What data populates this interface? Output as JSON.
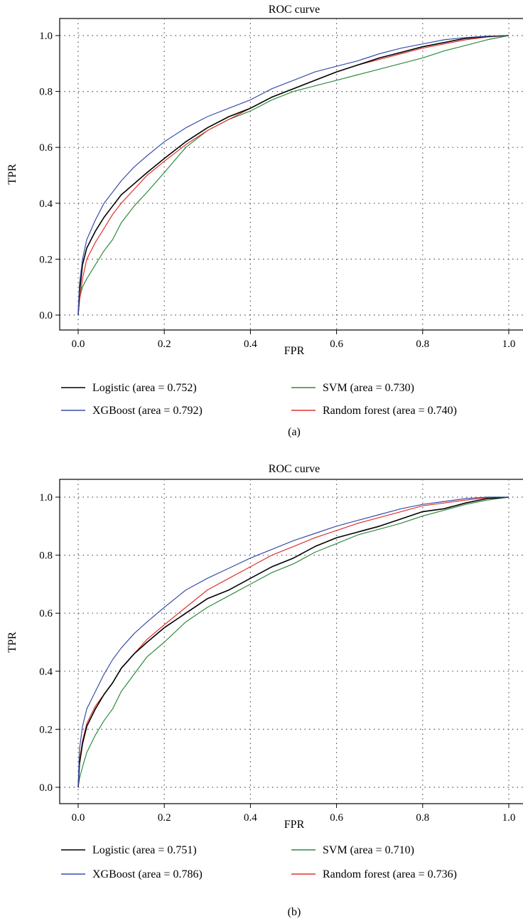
{
  "figure": {
    "panel_labels": [
      "(a)",
      "(b)"
    ]
  },
  "colors": {
    "logistic": "#000000",
    "xgboost": "#3a4fa8",
    "svm": "#2e8b3e",
    "random_forest": "#e0322d",
    "grid": "#555555"
  },
  "chart_data": [
    {
      "type": "line",
      "title": "ROC curve",
      "xlabel": "FPR",
      "ylabel": "TPR",
      "xlim": [
        0,
        1
      ],
      "ylim": [
        0,
        1
      ],
      "xticks": [
        "0.0",
        "0.2",
        "0.4",
        "0.6",
        "0.8",
        "1.0"
      ],
      "yticks": [
        "0.0",
        "0.2",
        "0.4",
        "0.6",
        "0.8",
        "1.0"
      ],
      "grid": true,
      "legend": "below",
      "series": [
        {
          "name": "Logistic (area = 0.752)",
          "color": "#000000",
          "key": "logistic",
          "x": [
            0,
            0.003,
            0.01,
            0.02,
            0.04,
            0.06,
            0.08,
            0.1,
            0.13,
            0.16,
            0.2,
            0.25,
            0.3,
            0.35,
            0.4,
            0.45,
            0.5,
            0.55,
            0.6,
            0.65,
            0.7,
            0.75,
            0.8,
            0.85,
            0.9,
            0.95,
            1.0
          ],
          "y": [
            0,
            0.08,
            0.18,
            0.24,
            0.3,
            0.35,
            0.39,
            0.43,
            0.47,
            0.51,
            0.56,
            0.62,
            0.67,
            0.71,
            0.74,
            0.78,
            0.81,
            0.84,
            0.87,
            0.895,
            0.92,
            0.94,
            0.96,
            0.975,
            0.99,
            0.997,
            1.0
          ]
        },
        {
          "name": "XGBoost (area = 0.792)",
          "color": "#3a4fa8",
          "key": "xgboost",
          "x": [
            0,
            0.003,
            0.01,
            0.02,
            0.04,
            0.06,
            0.08,
            0.1,
            0.13,
            0.16,
            0.2,
            0.25,
            0.3,
            0.35,
            0.4,
            0.45,
            0.5,
            0.55,
            0.6,
            0.65,
            0.7,
            0.75,
            0.8,
            0.85,
            0.9,
            0.95,
            1.0
          ],
          "y": [
            0,
            0.11,
            0.2,
            0.27,
            0.34,
            0.4,
            0.44,
            0.48,
            0.53,
            0.57,
            0.62,
            0.67,
            0.71,
            0.74,
            0.77,
            0.81,
            0.84,
            0.87,
            0.89,
            0.91,
            0.935,
            0.955,
            0.97,
            0.985,
            0.993,
            0.998,
            1.0
          ]
        },
        {
          "name": "SVM (area = 0.730)",
          "color": "#2e8b3e",
          "key": "svm",
          "x": [
            0,
            0.003,
            0.01,
            0.02,
            0.04,
            0.06,
            0.08,
            0.1,
            0.13,
            0.16,
            0.2,
            0.25,
            0.3,
            0.35,
            0.4,
            0.45,
            0.5,
            0.55,
            0.6,
            0.65,
            0.7,
            0.75,
            0.8,
            0.85,
            0.9,
            0.95,
            1.0
          ],
          "y": [
            0,
            0.06,
            0.1,
            0.13,
            0.18,
            0.23,
            0.27,
            0.33,
            0.39,
            0.44,
            0.51,
            0.6,
            0.66,
            0.7,
            0.73,
            0.77,
            0.8,
            0.82,
            0.84,
            0.86,
            0.88,
            0.9,
            0.92,
            0.945,
            0.965,
            0.985,
            1.0
          ]
        },
        {
          "name": "Random forest (area = 0.740)",
          "color": "#e0322d",
          "key": "random_forest",
          "x": [
            0,
            0.003,
            0.01,
            0.02,
            0.04,
            0.06,
            0.08,
            0.1,
            0.13,
            0.16,
            0.2,
            0.25,
            0.3,
            0.35,
            0.4,
            0.45,
            0.5,
            0.55,
            0.6,
            0.65,
            0.7,
            0.75,
            0.8,
            0.85,
            0.9,
            0.95,
            1.0
          ],
          "y": [
            0,
            0.05,
            0.13,
            0.2,
            0.26,
            0.31,
            0.36,
            0.4,
            0.45,
            0.5,
            0.55,
            0.61,
            0.66,
            0.7,
            0.74,
            0.78,
            0.81,
            0.84,
            0.87,
            0.895,
            0.915,
            0.935,
            0.955,
            0.97,
            0.985,
            0.995,
            1.0
          ]
        }
      ]
    },
    {
      "type": "line",
      "title": "ROC curve",
      "xlabel": "FPR",
      "ylabel": "TPR",
      "xlim": [
        0,
        1
      ],
      "ylim": [
        0,
        1
      ],
      "xticks": [
        "0.0",
        "0.2",
        "0.4",
        "0.6",
        "0.8",
        "1.0"
      ],
      "yticks": [
        "0.0",
        "0.2",
        "0.4",
        "0.6",
        "0.8",
        "1.0"
      ],
      "grid": true,
      "legend": "below",
      "series": [
        {
          "name": "Logistic (area = 0.751)",
          "color": "#000000",
          "key": "logistic",
          "x": [
            0,
            0.003,
            0.01,
            0.02,
            0.04,
            0.06,
            0.08,
            0.1,
            0.13,
            0.16,
            0.2,
            0.25,
            0.3,
            0.35,
            0.4,
            0.45,
            0.5,
            0.55,
            0.6,
            0.65,
            0.7,
            0.75,
            0.8,
            0.85,
            0.9,
            0.95,
            1.0
          ],
          "y": [
            0,
            0.08,
            0.15,
            0.21,
            0.27,
            0.32,
            0.36,
            0.41,
            0.46,
            0.5,
            0.55,
            0.6,
            0.65,
            0.68,
            0.72,
            0.76,
            0.79,
            0.83,
            0.86,
            0.88,
            0.9,
            0.925,
            0.95,
            0.96,
            0.98,
            0.995,
            1.0
          ]
        },
        {
          "name": "XGBoost (area = 0.786)",
          "color": "#3a4fa8",
          "key": "xgboost",
          "x": [
            0,
            0.003,
            0.01,
            0.02,
            0.04,
            0.06,
            0.08,
            0.1,
            0.13,
            0.16,
            0.2,
            0.25,
            0.3,
            0.35,
            0.4,
            0.45,
            0.5,
            0.55,
            0.6,
            0.65,
            0.7,
            0.75,
            0.8,
            0.85,
            0.9,
            0.95,
            1.0
          ],
          "y": [
            0,
            0.13,
            0.21,
            0.27,
            0.33,
            0.39,
            0.44,
            0.48,
            0.53,
            0.57,
            0.62,
            0.68,
            0.72,
            0.755,
            0.79,
            0.82,
            0.85,
            0.875,
            0.9,
            0.92,
            0.94,
            0.96,
            0.975,
            0.985,
            0.995,
            1.0,
            1.0
          ]
        },
        {
          "name": "SVM (area = 0.710)",
          "color": "#2e8b3e",
          "key": "svm",
          "x": [
            0,
            0.003,
            0.01,
            0.02,
            0.04,
            0.06,
            0.08,
            0.1,
            0.13,
            0.16,
            0.2,
            0.25,
            0.3,
            0.35,
            0.4,
            0.45,
            0.5,
            0.55,
            0.6,
            0.65,
            0.7,
            0.75,
            0.8,
            0.85,
            0.9,
            0.95,
            1.0
          ],
          "y": [
            0,
            0.03,
            0.07,
            0.12,
            0.18,
            0.23,
            0.27,
            0.33,
            0.39,
            0.45,
            0.5,
            0.57,
            0.62,
            0.66,
            0.7,
            0.74,
            0.77,
            0.81,
            0.84,
            0.87,
            0.89,
            0.91,
            0.935,
            0.955,
            0.975,
            0.99,
            1.0
          ]
        },
        {
          "name": "Random forest (area = 0.736)",
          "color": "#e0322d",
          "key": "random_forest",
          "x": [
            0,
            0.003,
            0.01,
            0.02,
            0.04,
            0.06,
            0.08,
            0.1,
            0.13,
            0.16,
            0.2,
            0.25,
            0.3,
            0.35,
            0.4,
            0.45,
            0.5,
            0.55,
            0.6,
            0.65,
            0.7,
            0.75,
            0.8,
            0.85,
            0.9,
            0.95,
            1.0
          ],
          "y": [
            0,
            0.09,
            0.16,
            0.22,
            0.28,
            0.32,
            0.36,
            0.41,
            0.46,
            0.51,
            0.56,
            0.62,
            0.68,
            0.72,
            0.76,
            0.8,
            0.83,
            0.86,
            0.885,
            0.91,
            0.93,
            0.95,
            0.97,
            0.98,
            0.99,
            0.998,
            1.0
          ]
        }
      ]
    }
  ]
}
